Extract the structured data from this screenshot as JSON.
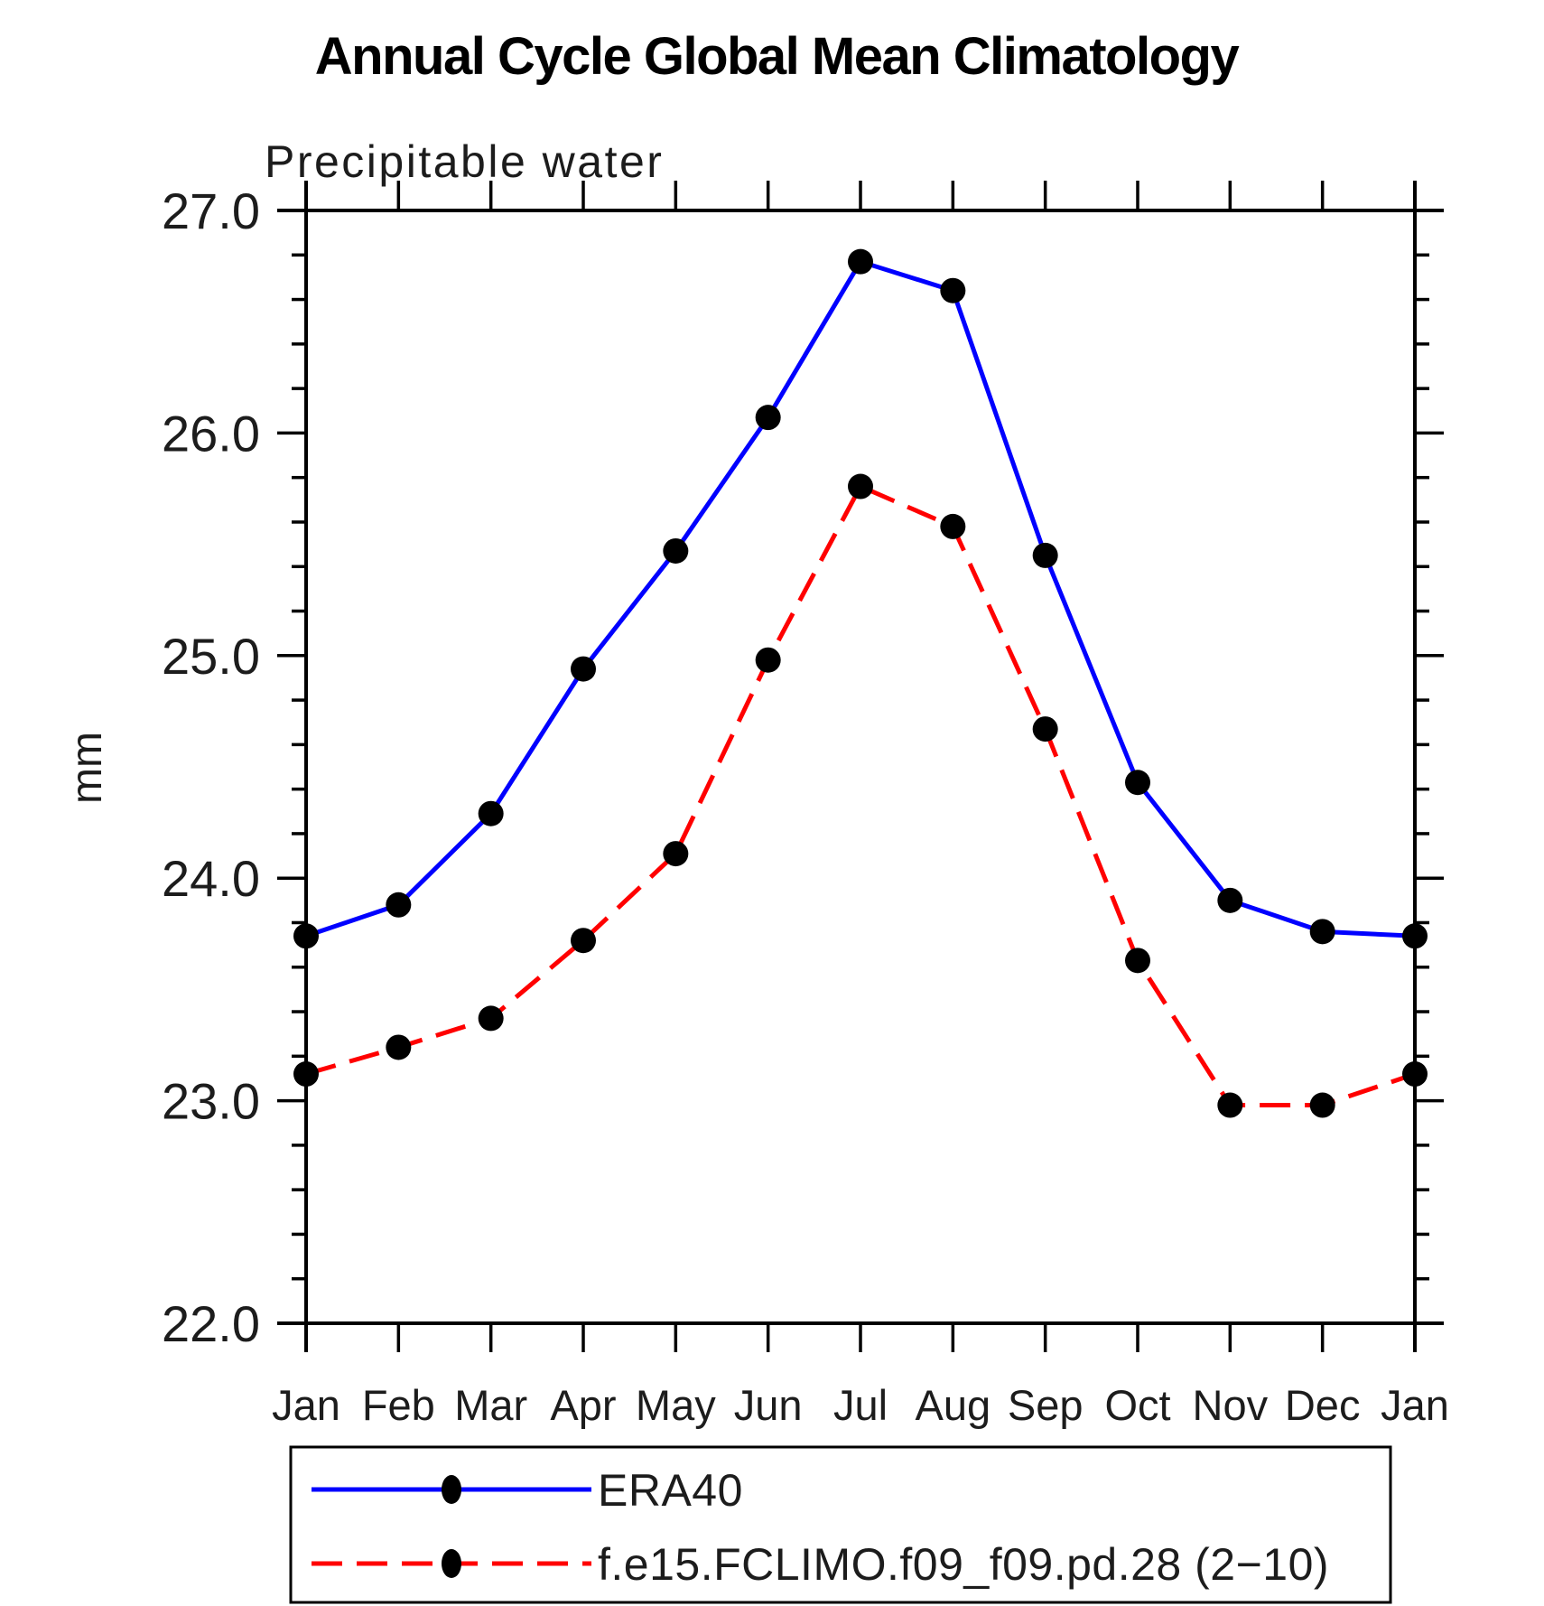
{
  "chart_data": {
    "type": "line",
    "title": "Annual Cycle Global Mean Climatology",
    "subtitle": "Precipitable water",
    "ylabel": "mm",
    "xlabel": "",
    "categories": [
      "Jan",
      "Feb",
      "Mar",
      "Apr",
      "May",
      "Jun",
      "Jul",
      "Aug",
      "Sep",
      "Oct",
      "Nov",
      "Dec",
      "Jan"
    ],
    "ylim": [
      22.0,
      27.0
    ],
    "yticks": [
      22,
      23,
      24,
      25,
      26,
      27
    ],
    "ytick_labels": [
      "22.0",
      "23.0",
      "24.0",
      "25.0",
      "26.0",
      "27.0"
    ],
    "y_minor_step": 0.2,
    "grid": false,
    "legend_position": "bottom",
    "axis_color": "#000000",
    "marker_shape": "filled-circle",
    "series": [
      {
        "name": "ERA40",
        "color": "#0000ff",
        "line_style": "solid",
        "marker_color": "#000000",
        "values": [
          23.74,
          23.88,
          24.29,
          24.94,
          25.47,
          26.07,
          26.77,
          26.64,
          25.45,
          24.43,
          23.9,
          23.76,
          23.74
        ]
      },
      {
        "name": "f.e15.FCLIMO.f09_f09.pd.28 (2−10)",
        "color": "#ff0000",
        "line_style": "dashed",
        "marker_color": "#000000",
        "values": [
          23.12,
          23.24,
          23.37,
          23.72,
          24.11,
          24.98,
          25.76,
          25.58,
          24.67,
          23.63,
          22.98,
          22.98,
          23.12
        ]
      }
    ]
  }
}
